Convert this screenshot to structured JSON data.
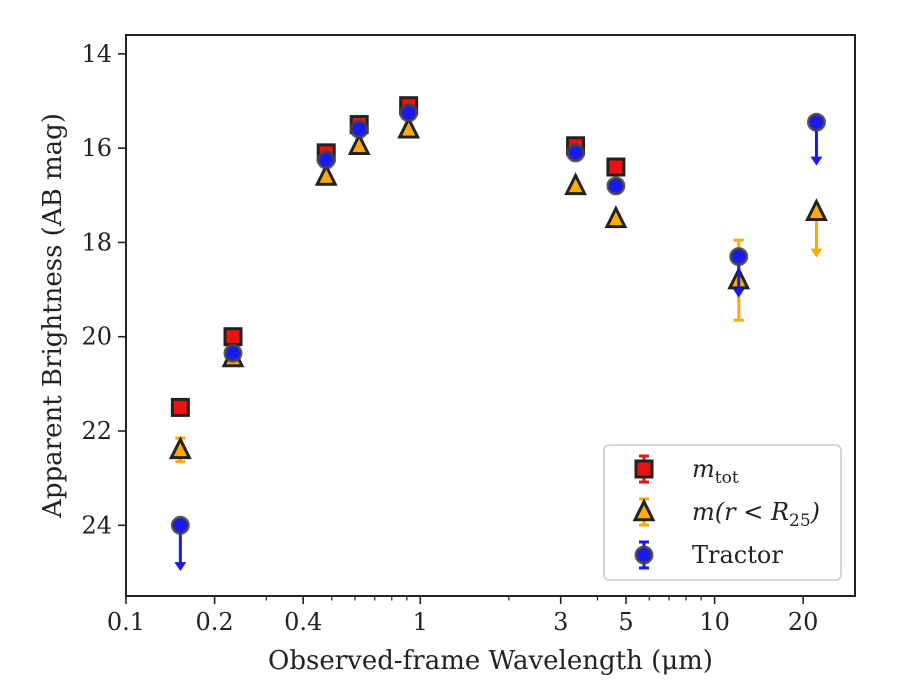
{
  "chart_data": {
    "type": "scatter",
    "xlabel": "Observed-frame Wavelength (μm)",
    "ylabel": "Apparent Brightness (AB mag)",
    "xscale": "log",
    "xlim": [
      0.1,
      30
    ],
    "ylim": [
      25.5,
      13.6
    ],
    "y_inverted": true,
    "xticks": [
      0.1,
      0.2,
      0.4,
      1,
      3,
      5,
      10,
      20
    ],
    "xtick_labels": [
      "0.1",
      "0.2",
      "0.4",
      "1",
      "3",
      "5",
      "10",
      "20"
    ],
    "yticks": [
      14,
      16,
      18,
      20,
      22,
      24
    ],
    "ytick_labels": [
      "14",
      "16",
      "18",
      "20",
      "22",
      "24"
    ],
    "grid": false,
    "legend_position": "bottom-right",
    "series": [
      {
        "name": "m_tot",
        "marker": "square",
        "color": "#ee1111",
        "edge_color": "#222222",
        "errbar_color": "#ee1111",
        "points": [
          {
            "x": 0.153,
            "y": 21.5
          },
          {
            "x": 0.231,
            "y": 20.0
          },
          {
            "x": 0.479,
            "y": 16.1,
            "err": 0.08
          },
          {
            "x": 0.62,
            "y": 15.5,
            "err": 0.08
          },
          {
            "x": 0.913,
            "y": 15.1,
            "err": 0.08
          },
          {
            "x": 3.37,
            "y": 15.95,
            "err": 0.08
          },
          {
            "x": 4.62,
            "y": 16.4
          }
        ]
      },
      {
        "name": "m(r < R_25)",
        "marker": "triangle",
        "color": "#ffaa00",
        "edge_color": "#222222",
        "errbar_color": "#ffaa00",
        "points": [
          {
            "x": 0.153,
            "y": 22.4,
            "err": 0.25
          },
          {
            "x": 0.231,
            "y": 20.45
          },
          {
            "x": 0.479,
            "y": 16.6
          },
          {
            "x": 0.62,
            "y": 15.95
          },
          {
            "x": 0.913,
            "y": 15.6
          },
          {
            "x": 3.37,
            "y": 16.8
          },
          {
            "x": 4.62,
            "y": 17.5
          },
          {
            "x": 12.08,
            "y": 18.8,
            "err_low": 0.85,
            "err_high": 0.85
          },
          {
            "x": 22.19,
            "y": 17.35,
            "upper_limit": true,
            "arrow_to": 18.3
          }
        ]
      },
      {
        "name": "Tractor",
        "marker": "circle",
        "color": "#1a1aee",
        "edge_color": "#444444",
        "errbar_color": "#1a1aee",
        "points": [
          {
            "x": 0.153,
            "y": 24.0,
            "upper_limit": true,
            "arrow_to": 24.95
          },
          {
            "x": 0.231,
            "y": 20.35
          },
          {
            "x": 0.479,
            "y": 16.25
          },
          {
            "x": 0.62,
            "y": 15.6
          },
          {
            "x": 0.913,
            "y": 15.25
          },
          {
            "x": 3.37,
            "y": 16.1
          },
          {
            "x": 4.62,
            "y": 16.8
          },
          {
            "x": 12.08,
            "y": 18.3,
            "upper_limit": true,
            "arrow_to": 19.15
          },
          {
            "x": 22.19,
            "y": 15.45,
            "upper_limit": true,
            "arrow_to": 16.35
          }
        ]
      }
    ]
  },
  "legend": {
    "entries": [
      {
        "label_main": "m",
        "label_sub": "tot",
        "label_rest": ""
      },
      {
        "label_main": "m(r < R",
        "label_sub": "25",
        "label_rest": ")"
      },
      {
        "label_main": "Tractor",
        "label_sub": "",
        "label_rest": ""
      }
    ]
  }
}
